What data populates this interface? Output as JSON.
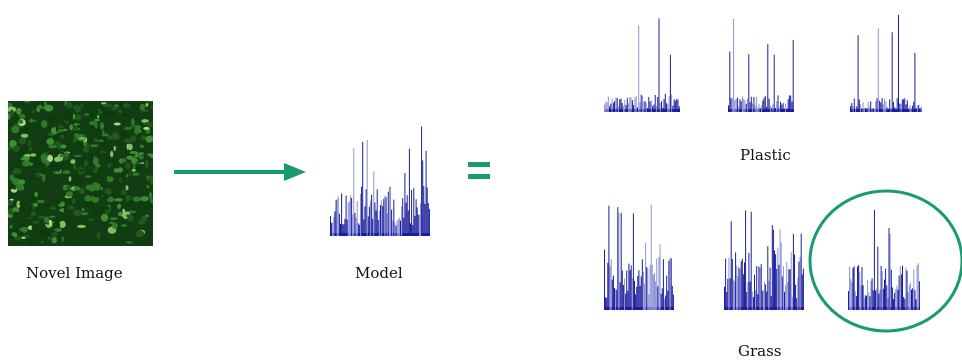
{
  "labels": {
    "novel_image": "Novel Image",
    "model": "Model",
    "plastic": "Plastic",
    "grass": "Grass",
    "equals": "="
  },
  "colors": {
    "histogram": "#1b1f9c",
    "histogram_light": "#8f92d6",
    "arrow": "#1a9a70",
    "ring": "#1a9a70",
    "texture_dark": "#0e3a10",
    "texture_mid": "#2f7a28",
    "texture_light": "#7fc060"
  },
  "histograms": {
    "model": "model-histogram",
    "plastic": [
      "plastic-histogram-1",
      "plastic-histogram-2",
      "plastic-histogram-3"
    ],
    "grass": [
      "grass-histogram-1",
      "grass-histogram-2",
      "grass-histogram-3"
    ],
    "matched": "grass-histogram-3"
  }
}
